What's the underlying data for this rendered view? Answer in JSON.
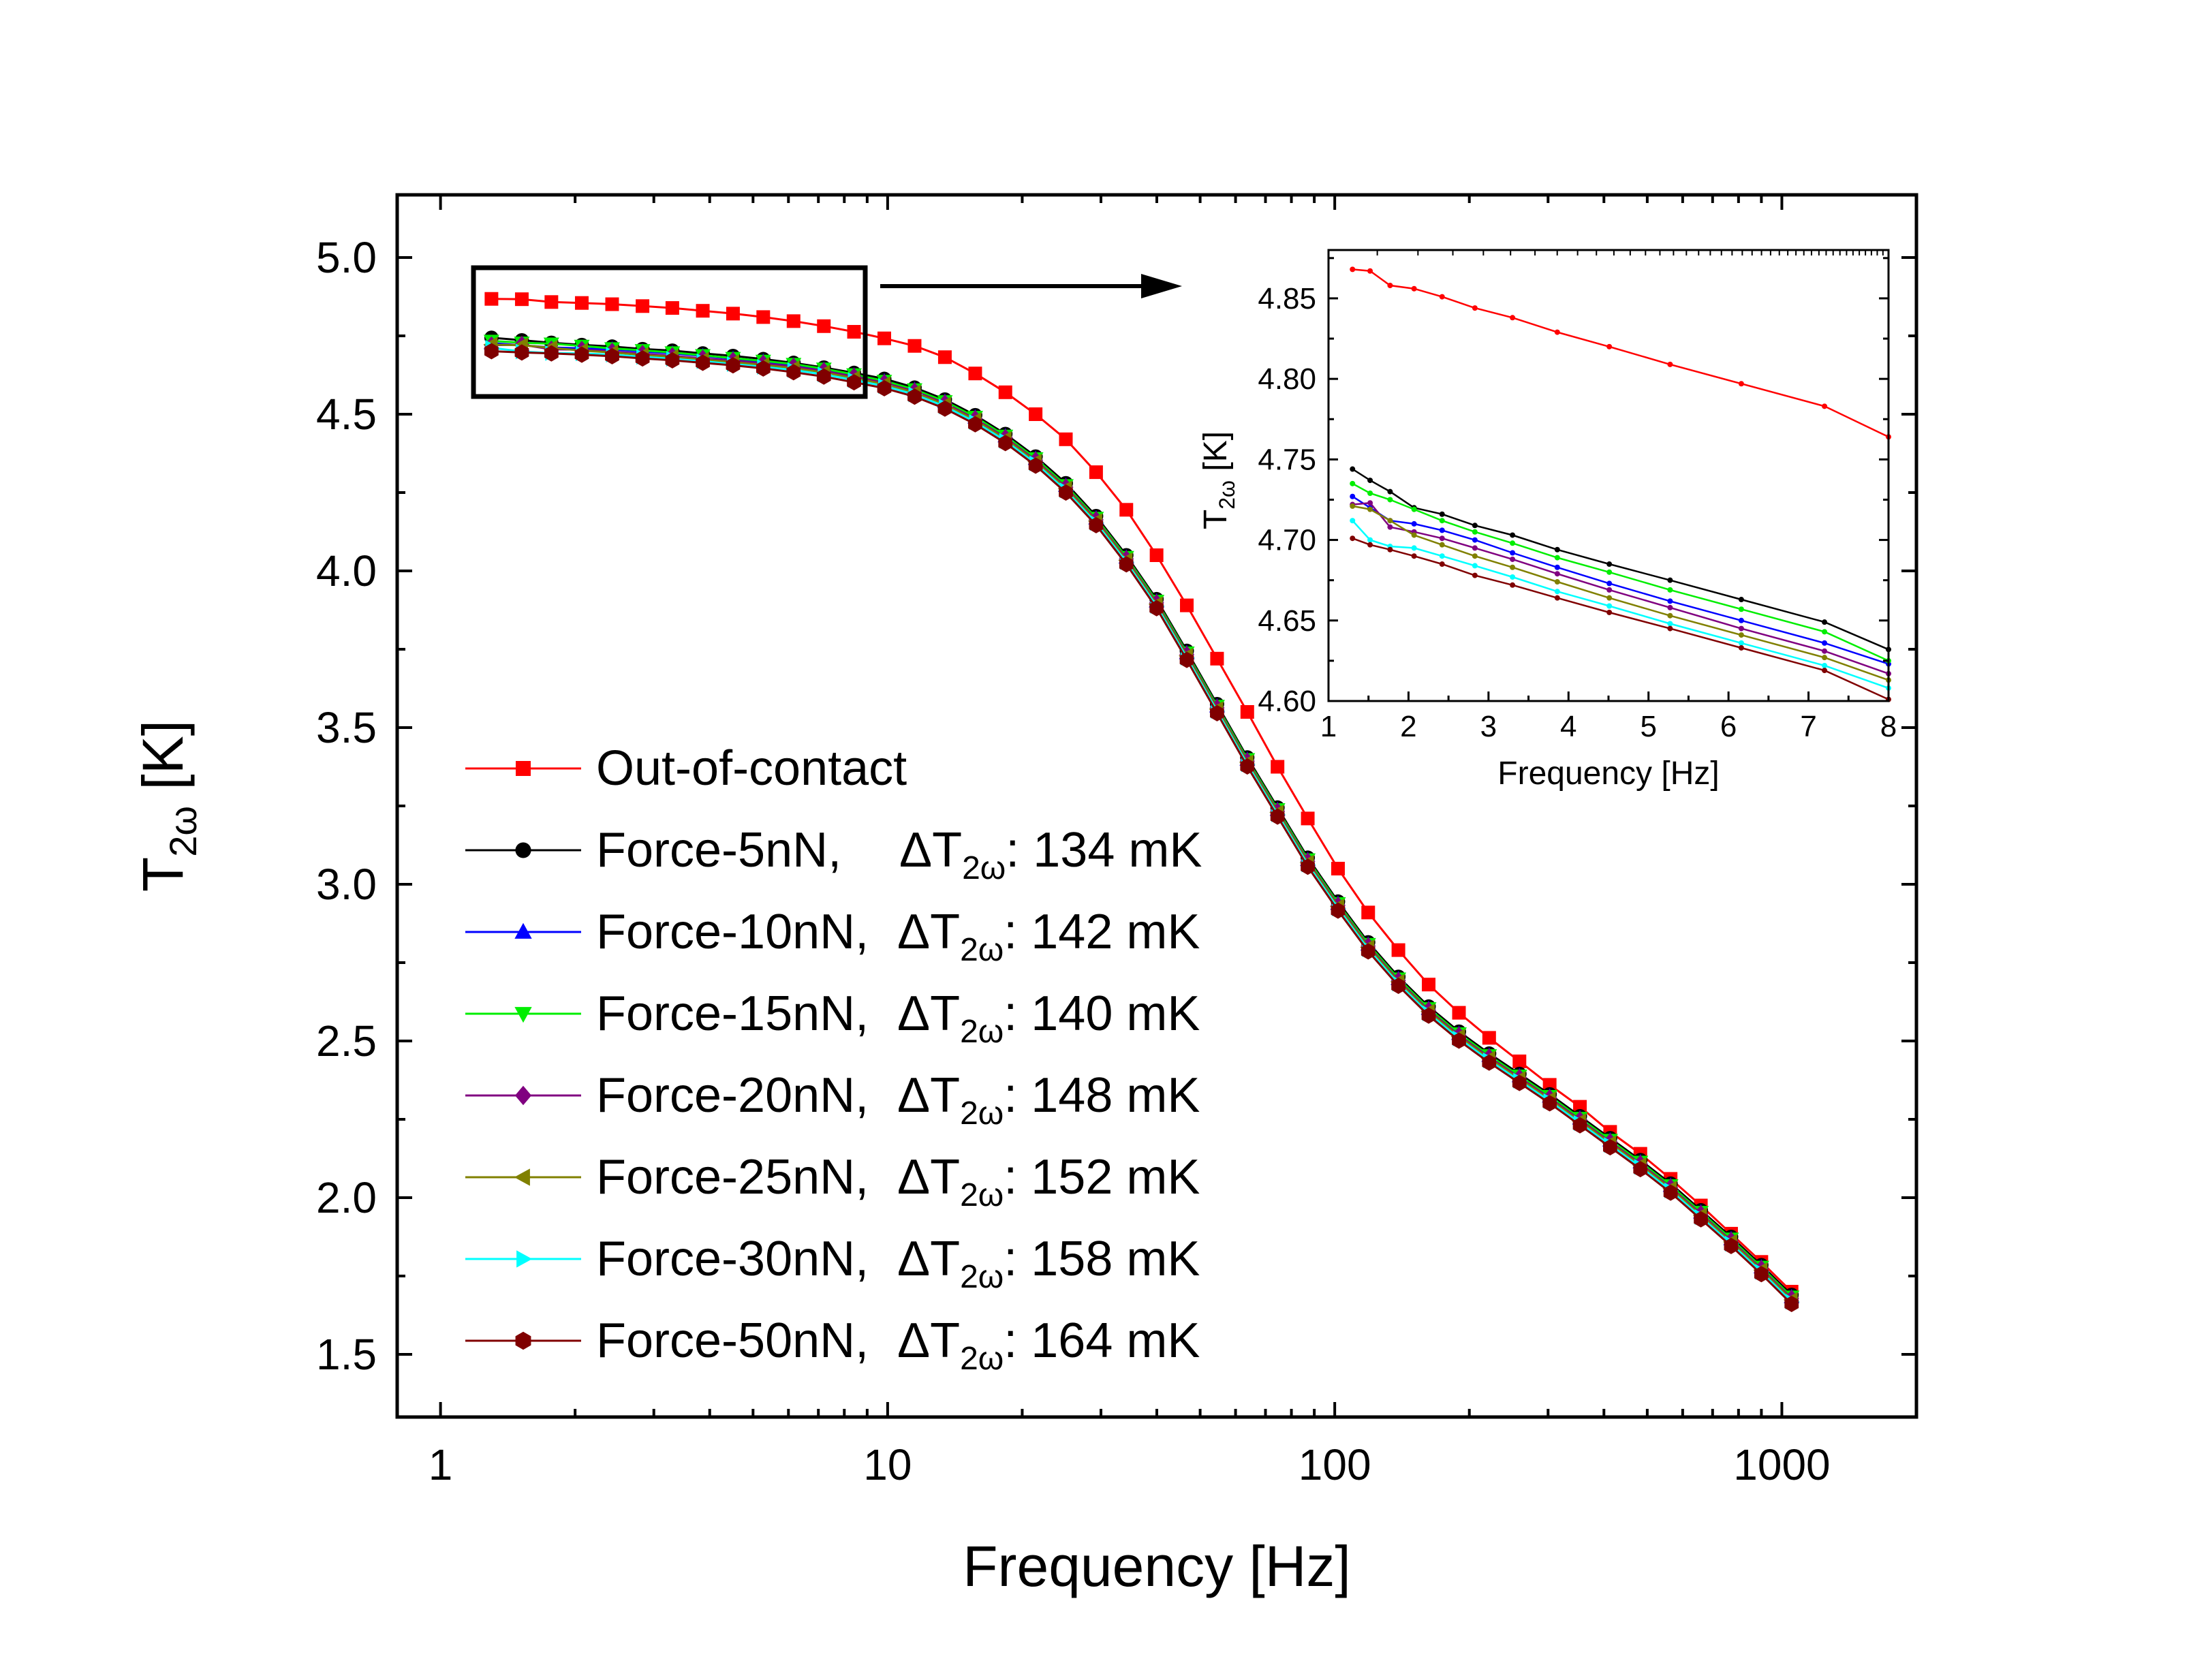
{
  "chart_data": [
    {
      "type": "line",
      "xscale": "log",
      "xlim": [
        0.8,
        2000
      ],
      "ylim": [
        1.3,
        5.2
      ],
      "xlabel": "Frequency [Hz]",
      "ylabel_main": "T",
      "ylabel_sub": "2ω",
      "ylabel_unit": " [K]",
      "xticks": [
        1,
        10,
        100,
        1000
      ],
      "xtick_labels": [
        "1",
        "10",
        "100",
        "1000"
      ],
      "yticks": [
        1.5,
        2.0,
        2.5,
        3.0,
        3.5,
        4.0,
        4.5,
        5.0
      ],
      "ytick_labels": [
        "1.5",
        "2.0",
        "2.5",
        "3.0",
        "3.5",
        "4.0",
        "4.5",
        "5.0"
      ],
      "x": [
        1.3,
        1.52,
        1.77,
        2.07,
        2.42,
        2.83,
        3.3,
        3.86,
        4.51,
        5.27,
        6.16,
        7.2,
        8.41,
        9.83,
        11.49,
        13.43,
        15.7,
        18.34,
        21.43,
        25.04,
        29.26,
        34.19,
        39.95,
        46.68,
        54.55,
        63.74,
        74.48,
        87.03,
        101.7,
        118.8,
        138.8,
        162.2,
        189.6,
        221.5,
        258.9,
        302.5,
        353.5,
        413.0,
        482.6,
        563.9,
        659.0,
        770.0,
        899.8,
        1051.4
      ],
      "series": [
        {
          "name": "Out-of-contact",
          "color": "#ff0000",
          "marker": "square",
          "values": [
            4.868,
            4.867,
            4.858,
            4.855,
            4.851,
            4.845,
            4.839,
            4.83,
            4.821,
            4.81,
            4.797,
            4.781,
            4.763,
            4.742,
            4.718,
            4.682,
            4.63,
            4.57,
            4.5,
            4.42,
            4.315,
            4.195,
            4.05,
            3.89,
            3.72,
            3.55,
            3.375,
            3.21,
            3.05,
            2.91,
            2.79,
            2.68,
            2.59,
            2.51,
            2.435,
            2.36,
            2.29,
            2.21,
            2.14,
            2.06,
            1.975,
            1.885,
            1.795,
            1.7
          ]
        },
        {
          "name": "Force-5nN,",
          "dt_label": "ΔT",
          "dt_sub": "2ω",
          "dt_value": ": 134 mK",
          "color": "#000000",
          "marker": "circle",
          "values": [
            4.744,
            4.736,
            4.728,
            4.721,
            4.716,
            4.708,
            4.703,
            4.694,
            4.686,
            4.676,
            4.664,
            4.649,
            4.632,
            4.613,
            4.585,
            4.547,
            4.497,
            4.437,
            4.365,
            4.28,
            4.175,
            4.05,
            3.91,
            3.745,
            3.575,
            3.405,
            3.245,
            3.085,
            2.945,
            2.815,
            2.705,
            2.61,
            2.53,
            2.46,
            2.395,
            2.33,
            2.26,
            2.19,
            2.12,
            2.045,
            1.96,
            1.875,
            1.785,
            1.69
          ]
        },
        {
          "name": "Force-10nN,",
          "dt_label": "ΔT",
          "dt_sub": "2ω",
          "dt_value": ": 142 mK",
          "color": "#0000ff",
          "marker": "triangle-up",
          "values": [
            4.727,
            4.72,
            4.713,
            4.71,
            4.707,
            4.7,
            4.694,
            4.686,
            4.677,
            4.668,
            4.656,
            4.642,
            4.624,
            4.605,
            4.578,
            4.54,
            4.49,
            4.43,
            4.358,
            4.272,
            4.168,
            4.043,
            3.903,
            3.738,
            3.568,
            3.398,
            3.238,
            3.078,
            2.938,
            2.808,
            2.698,
            2.603,
            2.523,
            2.453,
            2.388,
            2.323,
            2.253,
            2.183,
            2.113,
            2.038,
            1.953,
            1.868,
            1.778,
            1.683
          ]
        },
        {
          "name": "Force-15nN,",
          "dt_label": "ΔT",
          "dt_sub": "2ω",
          "dt_value": ": 140 mK",
          "color": "#00ee00",
          "marker": "triangle-down",
          "values": [
            4.734,
            4.728,
            4.725,
            4.718,
            4.71,
            4.704,
            4.697,
            4.688,
            4.679,
            4.67,
            4.66,
            4.645,
            4.627,
            4.606,
            4.579,
            4.541,
            4.491,
            4.431,
            4.359,
            4.273,
            4.169,
            4.044,
            3.904,
            3.739,
            3.569,
            3.399,
            3.239,
            3.079,
            2.939,
            2.809,
            2.699,
            2.604,
            2.524,
            2.454,
            2.389,
            2.324,
            2.254,
            2.184,
            2.114,
            2.039,
            1.954,
            1.869,
            1.779,
            1.684
          ]
        },
        {
          "name": "Force-20nN,",
          "dt_label": "ΔT",
          "dt_sub": "2ω",
          "dt_value": ": 148 mK",
          "color": "#800080",
          "marker": "diamond",
          "values": [
            4.72,
            4.722,
            4.707,
            4.706,
            4.7,
            4.693,
            4.686,
            4.678,
            4.671,
            4.662,
            4.652,
            4.638,
            4.62,
            4.6,
            4.573,
            4.535,
            4.485,
            4.425,
            4.353,
            4.267,
            4.163,
            4.038,
            3.898,
            3.733,
            3.563,
            3.393,
            3.233,
            3.073,
            2.933,
            2.803,
            2.693,
            2.598,
            2.518,
            2.448,
            2.383,
            2.318,
            2.248,
            2.178,
            2.108,
            2.033,
            1.948,
            1.863,
            1.773,
            1.678
          ]
        },
        {
          "name": "Force-25nN,",
          "dt_label": "ΔT",
          "dt_sub": "2ω",
          "dt_value": ": 152 mK",
          "color": "#808000",
          "marker": "triangle-left",
          "values": [
            4.722,
            4.72,
            4.712,
            4.703,
            4.697,
            4.689,
            4.683,
            4.674,
            4.666,
            4.657,
            4.647,
            4.633,
            4.615,
            4.596,
            4.569,
            4.531,
            4.481,
            4.421,
            4.349,
            4.263,
            4.159,
            4.034,
            3.894,
            3.729,
            3.559,
            3.389,
            3.229,
            3.069,
            2.929,
            2.799,
            2.689,
            2.594,
            2.514,
            2.444,
            2.379,
            2.314,
            2.244,
            2.174,
            2.104,
            2.029,
            1.944,
            1.859,
            1.769,
            1.674
          ]
        },
        {
          "name": "Force-30nN,",
          "dt_label": "ΔT",
          "dt_sub": "2ω",
          "dt_value": ": 158 mK",
          "color": "#00ffff",
          "marker": "triangle-right",
          "values": [
            4.712,
            4.7,
            4.695,
            4.694,
            4.69,
            4.683,
            4.677,
            4.669,
            4.66,
            4.651,
            4.641,
            4.627,
            4.609,
            4.59,
            4.563,
            4.525,
            4.475,
            4.415,
            4.343,
            4.257,
            4.153,
            4.028,
            3.888,
            3.723,
            3.553,
            3.383,
            3.223,
            3.063,
            2.923,
            2.793,
            2.683,
            2.588,
            2.508,
            2.438,
            2.373,
            2.308,
            2.238,
            2.168,
            2.098,
            2.023,
            1.938,
            1.853,
            1.763,
            1.668
          ]
        },
        {
          "name": "Force-50nN,",
          "dt_label": "ΔT",
          "dt_sub": "2ω",
          "dt_value": ": 164 mK",
          "color": "#800000",
          "marker": "hexagon",
          "values": [
            4.701,
            4.697,
            4.694,
            4.69,
            4.685,
            4.678,
            4.672,
            4.664,
            4.656,
            4.646,
            4.634,
            4.62,
            4.602,
            4.583,
            4.556,
            4.518,
            4.468,
            4.408,
            4.336,
            4.25,
            4.146,
            4.021,
            3.881,
            3.716,
            3.546,
            3.376,
            3.216,
            3.056,
            2.916,
            2.786,
            2.676,
            2.581,
            2.501,
            2.431,
            2.366,
            2.301,
            2.231,
            2.161,
            2.091,
            2.016,
            1.931,
            1.846,
            1.756,
            1.661
          ]
        }
      ]
    },
    {
      "type": "line",
      "role": "inset",
      "xscale": "linear",
      "xlim": [
        1,
        8
      ],
      "ylim": [
        4.6,
        4.88
      ],
      "xlabel": "Frequency [Hz]",
      "ylabel_main": "T",
      "ylabel_sub": "2ω",
      "ylabel_unit": " [K]",
      "xticks": [
        1,
        2,
        3,
        4,
        5,
        6,
        7,
        8
      ],
      "xtick_labels": [
        "1",
        "2",
        "3",
        "4",
        "5",
        "6",
        "7",
        "8"
      ],
      "yticks": [
        4.6,
        4.65,
        4.7,
        4.75,
        4.8,
        4.85
      ],
      "ytick_labels": [
        "4.60",
        "4.65",
        "4.70",
        "4.75",
        "4.80",
        "4.85"
      ],
      "x": [
        1.3,
        1.52,
        1.77,
        2.07,
        2.42,
        2.83,
        3.3,
        3.86,
        4.51,
        5.27,
        6.16,
        7.2,
        8.0
      ],
      "series": [
        {
          "name": "Out-of-contact",
          "color": "#ff0000",
          "values": [
            4.868,
            4.867,
            4.858,
            4.856,
            4.851,
            4.844,
            4.838,
            4.829,
            4.82,
            4.809,
            4.797,
            4.783,
            4.764
          ]
        },
        {
          "name": "Force-5nN",
          "color": "#000000",
          "values": [
            4.744,
            4.737,
            4.73,
            4.72,
            4.716,
            4.709,
            4.703,
            4.694,
            4.685,
            4.675,
            4.663,
            4.649,
            4.632
          ]
        },
        {
          "name": "Force-10nN",
          "color": "#0000ff",
          "values": [
            4.727,
            4.72,
            4.712,
            4.71,
            4.706,
            4.7,
            4.692,
            4.683,
            4.673,
            4.662,
            4.65,
            4.636,
            4.623
          ]
        },
        {
          "name": "Force-15nN",
          "color": "#00ee00",
          "values": [
            4.735,
            4.729,
            4.725,
            4.719,
            4.712,
            4.705,
            4.698,
            4.689,
            4.68,
            4.669,
            4.657,
            4.643,
            4.625
          ]
        },
        {
          "name": "Force-20nN",
          "color": "#800080",
          "values": [
            4.722,
            4.723,
            4.708,
            4.705,
            4.701,
            4.695,
            4.688,
            4.679,
            4.669,
            4.658,
            4.645,
            4.631,
            4.617
          ]
        },
        {
          "name": "Force-25nN",
          "color": "#808000",
          "values": [
            4.721,
            4.719,
            4.712,
            4.703,
            4.697,
            4.69,
            4.683,
            4.674,
            4.664,
            4.653,
            4.641,
            4.627,
            4.613
          ]
        },
        {
          "name": "Force-30nN",
          "color": "#00ffff",
          "values": [
            4.712,
            4.7,
            4.696,
            4.695,
            4.69,
            4.684,
            4.677,
            4.668,
            4.659,
            4.648,
            4.636,
            4.622,
            4.608
          ]
        },
        {
          "name": "Force-50nN",
          "color": "#800000",
          "values": [
            4.701,
            4.697,
            4.694,
            4.69,
            4.685,
            4.678,
            4.672,
            4.664,
            4.655,
            4.645,
            4.633,
            4.619,
            4.601
          ]
        }
      ]
    }
  ]
}
